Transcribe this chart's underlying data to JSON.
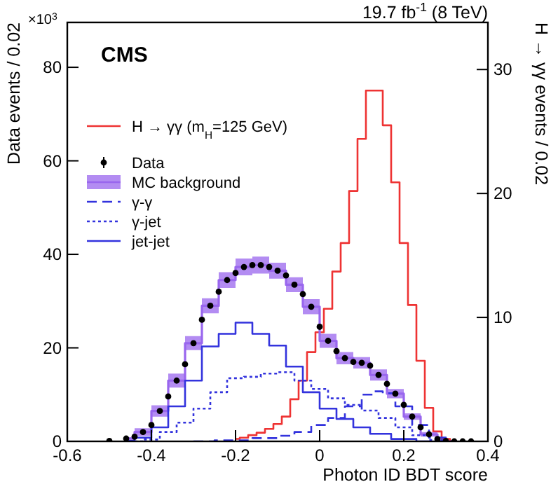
{
  "chart_data": {
    "type": "step",
    "title": "19.7 fb$^{-1}$ (8 TeV)",
    "xlabel": "Photon ID BDT score",
    "ylabel": "Data events / 0.02",
    "y2label": "H → γγ events / 0.02",
    "annotations": [
      "CMS",
      "×10$^{3}$"
    ],
    "xlim": [
      -0.6,
      0.4
    ],
    "xticks": [
      -0.6,
      -0.4,
      -0.2,
      0,
      0.2,
      0.4
    ],
    "ylim": [
      0,
      89.6
    ],
    "yticks": [
      0,
      20,
      40,
      60,
      80
    ],
    "y2lim": [
      0,
      33.8
    ],
    "y2ticks": [
      0,
      10,
      20,
      30
    ],
    "legend": "top left",
    "grid": false,
    "series": [
      {
        "name": "H → γγ  (m$_{H}$=125 GeV)",
        "axis": "y2",
        "color": "#ee3333",
        "x": [
          -0.2,
          -0.18,
          -0.16,
          -0.14,
          -0.12,
          -0.1,
          -0.08,
          -0.06,
          -0.04,
          -0.02,
          0,
          0.02,
          0.04,
          0.06,
          0.08,
          0.1,
          0.12,
          0.14,
          0.16,
          0.18,
          0.2,
          0.22,
          0.24,
          0.26,
          0.28,
          0.3,
          0.32
        ],
        "values": [
          0.2,
          0.3,
          0.5,
          0.7,
          1,
          1.4,
          2,
          3.4,
          4.9,
          7.2,
          8.8,
          10.7,
          13.7,
          16,
          20.2,
          24.4,
          28.3,
          28.3,
          25.5,
          20.9,
          16,
          11,
          6.5,
          2.7,
          0.8,
          0.2,
          0
        ]
      },
      {
        "name": "Data",
        "type": "scatter",
        "marker": "circle",
        "color": "#000000",
        "x": [
          -0.5,
          -0.46,
          -0.44,
          -0.42,
          -0.4,
          -0.38,
          -0.36,
          -0.34,
          -0.32,
          -0.3,
          -0.28,
          -0.26,
          -0.24,
          -0.22,
          -0.2,
          -0.18,
          -0.16,
          -0.14,
          -0.12,
          -0.1,
          -0.08,
          -0.06,
          -0.04,
          -0.02,
          0,
          0.02,
          0.04,
          0.06,
          0.08,
          0.1,
          0.12,
          0.14,
          0.16,
          0.18,
          0.2,
          0.22,
          0.24,
          0.26,
          0.28,
          0.3,
          0.32,
          0.34,
          0.36
        ],
        "values": [
          0.1,
          0.6,
          1,
          2,
          3.5,
          6.5,
          9.6,
          13,
          16.5,
          21,
          26,
          29,
          32,
          34.5,
          36,
          37.3,
          37.7,
          37.7,
          37.3,
          36.5,
          35.5,
          33.5,
          31.5,
          28.8,
          24.5,
          21.5,
          19.3,
          17.8,
          17,
          16.8,
          16.2,
          14.2,
          12.3,
          10.2,
          7.8,
          5.3,
          3,
          1.5,
          0.5,
          0.1,
          0,
          0,
          0
        ]
      },
      {
        "name": "MC background",
        "color": "#9966ee",
        "x": [
          -0.46,
          -0.42,
          -0.38,
          -0.34,
          -0.3,
          -0.26,
          -0.22,
          -0.18,
          -0.14,
          -0.1,
          -0.06,
          -0.02,
          0.02,
          0.06,
          0.1,
          0.14,
          0.18,
          0.22,
          0.26,
          0.3
        ],
        "values": [
          0.6,
          2,
          6.5,
          13,
          21,
          29,
          34.5,
          37.3,
          37.7,
          36.5,
          33.5,
          28.8,
          21.5,
          17.8,
          16.8,
          14.2,
          10.2,
          5.3,
          1.5,
          0.1
        ],
        "lower": [
          0.3,
          1.2,
          5.3,
          11.5,
          19.5,
          27.4,
          32.8,
          35.5,
          35.9,
          34.8,
          31.9,
          27.2,
          20,
          16.5,
          15.6,
          13,
          9.2,
          4.6,
          1,
          0
        ],
        "upper": [
          0.9,
          2.8,
          7.7,
          14.5,
          22.5,
          30.6,
          36.2,
          39.1,
          39.5,
          38.2,
          35.1,
          30.4,
          23,
          19.1,
          18,
          15.4,
          11.2,
          6,
          2,
          0.3
        ]
      },
      {
        "name": "γ-γ",
        "line_style": "dashed",
        "color": "#3333dd",
        "x": [
          -0.3,
          -0.2,
          -0.12,
          -0.08,
          -0.04,
          0,
          0.04,
          0.08,
          0.12,
          0.14,
          0.16,
          0.2,
          0.24,
          0.28,
          0.32
        ],
        "values": [
          0,
          0.2,
          0.7,
          1.2,
          2,
          3.5,
          5,
          7.5,
          10,
          10.7,
          10.3,
          7.5,
          3.5,
          0.8,
          0
        ]
      },
      {
        "name": "γ-jet",
        "line_style": "dotted",
        "color": "#3333dd",
        "x": [
          -0.44,
          -0.4,
          -0.36,
          -0.32,
          -0.28,
          -0.24,
          -0.2,
          -0.16,
          -0.12,
          -0.08,
          -0.04,
          0,
          0.04,
          0.08,
          0.12,
          0.16,
          0.2,
          0.24,
          0.28,
          0.32
        ],
        "values": [
          0,
          0.4,
          2,
          4,
          7,
          10.5,
          13.5,
          13.8,
          14.5,
          14.8,
          13,
          11.2,
          9.2,
          7.8,
          6.6,
          5,
          3,
          1.3,
          0.3,
          0
        ]
      },
      {
        "name": "jet-jet",
        "line_style": "solid",
        "color": "#3333dd",
        "x": [
          -0.46,
          -0.42,
          -0.38,
          -0.34,
          -0.3,
          -0.26,
          -0.22,
          -0.18,
          -0.14,
          -0.1,
          -0.06,
          -0.02,
          0.02,
          0.06,
          0.1,
          0.14,
          0.2,
          0.26
        ],
        "values": [
          0.1,
          0.8,
          3,
          7.5,
          13,
          20.3,
          23,
          25.4,
          23,
          20.5,
          16,
          10.5,
          7,
          4.8,
          3,
          1.6,
          0.5,
          0
        ]
      }
    ]
  }
}
